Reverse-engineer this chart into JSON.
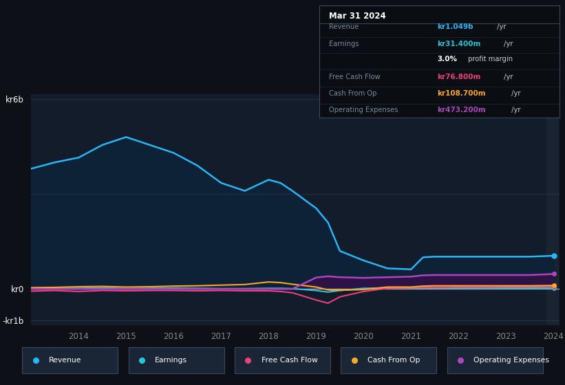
{
  "bg_color": "#0d1117",
  "plot_bg_color": "#131c2b",
  "grid_color": "#2a3a4a",
  "colors": {
    "revenue": "#29b6f6",
    "earnings": "#26c6da",
    "free_cash_flow": "#ec407a",
    "cash_from_op": "#ffa726",
    "op_expenses": "#ab47bc",
    "revenue_fill": "#0d2137",
    "op_expenses_fill": "#2d1245"
  },
  "years": [
    2013.0,
    2013.5,
    2014.0,
    2014.5,
    2015.0,
    2015.5,
    2016.0,
    2016.5,
    2017.0,
    2017.5,
    2018.0,
    2018.25,
    2018.5,
    2019.0,
    2019.25,
    2019.5,
    2020.0,
    2020.5,
    2021.0,
    2021.25,
    2021.5,
    2022.0,
    2022.5,
    2023.0,
    2023.5,
    2024.0
  ],
  "revenue": [
    3.8,
    4.0,
    4.15,
    4.55,
    4.8,
    4.55,
    4.3,
    3.9,
    3.35,
    3.1,
    3.45,
    3.35,
    3.1,
    2.55,
    2.1,
    1.2,
    0.9,
    0.65,
    0.62,
    1.0,
    1.02,
    1.02,
    1.02,
    1.02,
    1.02,
    1.049
  ],
  "earnings": [
    0.01,
    0.02,
    0.02,
    0.03,
    0.01,
    0.02,
    0.03,
    0.02,
    0.01,
    0.01,
    0.02,
    0.02,
    0.01,
    -0.05,
    -0.1,
    -0.05,
    0.02,
    0.03,
    0.03,
    0.03,
    0.03,
    0.03,
    0.03,
    0.03,
    0.03,
    0.031
  ],
  "free_cash_flow": [
    -0.07,
    -0.05,
    -0.08,
    -0.05,
    -0.06,
    -0.05,
    -0.05,
    -0.06,
    -0.05,
    -0.06,
    -0.06,
    -0.08,
    -0.12,
    -0.35,
    -0.45,
    -0.25,
    -0.08,
    0.02,
    0.04,
    0.05,
    0.05,
    0.06,
    0.06,
    0.07,
    0.07,
    0.077
  ],
  "cash_from_op": [
    0.04,
    0.05,
    0.07,
    0.08,
    0.06,
    0.07,
    0.09,
    0.1,
    0.12,
    0.14,
    0.22,
    0.2,
    0.15,
    0.06,
    -0.03,
    -0.04,
    -0.02,
    0.06,
    0.06,
    0.09,
    0.1,
    0.1,
    0.1,
    0.1,
    0.1,
    0.109
  ],
  "op_expenses": [
    0.0,
    0.0,
    0.0,
    0.0,
    0.0,
    0.0,
    0.0,
    0.0,
    0.0,
    0.0,
    0.0,
    0.0,
    0.0,
    0.36,
    0.4,
    0.37,
    0.35,
    0.37,
    0.39,
    0.43,
    0.44,
    0.44,
    0.44,
    0.44,
    0.44,
    0.473
  ],
  "xlabel_years": [
    2014,
    2015,
    2016,
    2017,
    2018,
    2019,
    2020,
    2021,
    2022,
    2023,
    2024
  ],
  "legend": [
    {
      "label": "Revenue",
      "color": "#29b6f6"
    },
    {
      "label": "Earnings",
      "color": "#26c6da"
    },
    {
      "label": "Free Cash Flow",
      "color": "#ec407a"
    },
    {
      "label": "Cash From Op",
      "color": "#ffa726"
    },
    {
      "label": "Operating Expenses",
      "color": "#ab47bc"
    }
  ]
}
